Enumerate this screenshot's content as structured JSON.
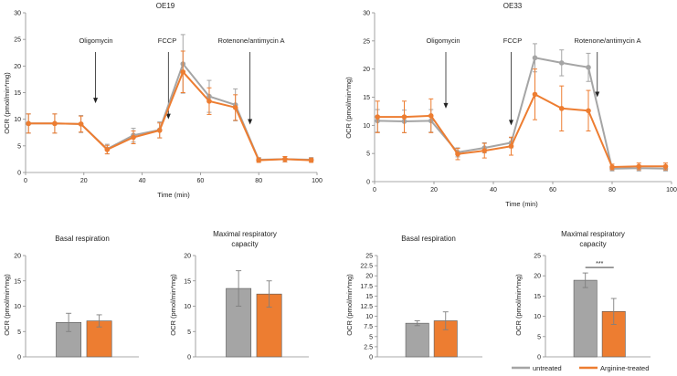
{
  "colors": {
    "untreated": "#a5a5a5",
    "arginine": "#ed7d31",
    "axis": "#8c8c8c",
    "error": "#7f7f7f"
  },
  "legend": {
    "untreated": "untreated",
    "arginine": "Arginine-treated"
  },
  "chart_data": [
    {
      "id": "oe19-ocr",
      "type": "line",
      "title": "OE19",
      "xlabel": "Time (min)",
      "ylabel": "OCR (pmol/min*mg)",
      "xlim": [
        0,
        100
      ],
      "ylim": [
        0,
        30
      ],
      "xticks": [
        0,
        20,
        40,
        60,
        80,
        100
      ],
      "yticks": [
        0,
        5,
        10,
        15,
        20,
        25,
        30
      ],
      "x": [
        1,
        10,
        19,
        28,
        37,
        46,
        54,
        63,
        72,
        80,
        89,
        98
      ],
      "series": [
        {
          "name": "untreated",
          "values": [
            9.2,
            9.2,
            9.1,
            4.4,
            7.0,
            8.0,
            20.4,
            14.3,
            12.7,
            2.4,
            2.5,
            2.4
          ],
          "error": [
            1.8,
            1.8,
            1.6,
            0.9,
            1.3,
            1.5,
            5.5,
            3.0,
            3.0,
            0.4,
            0.5,
            0.4
          ]
        },
        {
          "name": "Arginine-treated",
          "values": [
            9.2,
            9.2,
            9.1,
            4.3,
            6.6,
            7.9,
            18.9,
            13.4,
            12.2,
            2.3,
            2.5,
            2.3
          ],
          "error": [
            1.8,
            1.8,
            1.5,
            0.8,
            1.2,
            1.4,
            3.9,
            2.5,
            2.4,
            0.4,
            0.5,
            0.4
          ]
        }
      ],
      "annotations": [
        {
          "text": "Oligomycin",
          "x": 24,
          "arrow_tip": 13,
          "label_y": 26
        },
        {
          "text": "FCCP",
          "x": 49,
          "arrow_tip": 10,
          "label_y": 26
        },
        {
          "text": "Rotenone/antimycin A",
          "x": 77,
          "arrow_tip": 9,
          "label_y": 26
        }
      ]
    },
    {
      "id": "oe33-ocr",
      "type": "line",
      "title": "OE33",
      "xlabel": "Time (min)",
      "ylabel": "OCR (pmol/min*mg)",
      "xlim": [
        0,
        100
      ],
      "ylim": [
        0,
        30
      ],
      "xticks": [
        0,
        20,
        40,
        60,
        80,
        100
      ],
      "yticks": [
        0,
        5,
        10,
        15,
        20,
        25,
        30
      ],
      "x": [
        1,
        10,
        19,
        28,
        37,
        46,
        54,
        63,
        72,
        80,
        89,
        98
      ],
      "series": [
        {
          "name": "untreated",
          "values": [
            10.8,
            10.7,
            10.8,
            5.2,
            6.0,
            6.9,
            22.0,
            21.1,
            20.3,
            2.3,
            2.4,
            2.3
          ],
          "error": [
            2.0,
            2.0,
            2.0,
            0.8,
            0.9,
            0.9,
            2.5,
            2.3,
            2.5,
            0.4,
            0.5,
            0.4
          ]
        },
        {
          "name": "Arginine-treated",
          "values": [
            11.5,
            11.5,
            11.7,
            4.9,
            5.5,
            6.3,
            15.5,
            13.0,
            12.6,
            2.6,
            2.7,
            2.7
          ],
          "error": [
            2.8,
            2.8,
            3.0,
            1.0,
            1.3,
            1.6,
            4.5,
            4.0,
            3.6,
            0.5,
            0.6,
            0.6
          ]
        }
      ],
      "annotations": [
        {
          "text": "Oligomycin",
          "x": 24,
          "arrow_tip": 13,
          "label_y": 26
        },
        {
          "text": "FCCP",
          "x": 46,
          "arrow_tip": 10,
          "label_y": 26
        },
        {
          "text": "Rotenone/antimycin A",
          "x": 75,
          "arrow_tip": 15,
          "label_y": 26
        }
      ]
    },
    {
      "id": "oe19-basal",
      "type": "bar",
      "title": "Basal respiration",
      "ylabel": "OCR (pmol/min*mg)",
      "ylim": [
        0,
        20
      ],
      "yticks": [
        0,
        5,
        10,
        15,
        20
      ],
      "categories": [
        "untreated",
        "Arginine-treated"
      ],
      "values": [
        6.8,
        7.1
      ],
      "error": [
        1.8,
        1.2
      ]
    },
    {
      "id": "oe19-maximal",
      "type": "bar",
      "title": "Maximal respiratory capacity",
      "title_lines": [
        "Maximal respiratory",
        "capacity"
      ],
      "ylabel": "OCR (pmol/min*mg)",
      "ylim": [
        0,
        20
      ],
      "yticks": [
        0,
        5,
        10,
        15,
        20
      ],
      "categories": [
        "untreated",
        "Arginine-treated"
      ],
      "values": [
        13.5,
        12.4
      ],
      "error": [
        3.5,
        2.6
      ]
    },
    {
      "id": "oe33-basal",
      "type": "bar",
      "title": "Basal respiration",
      "ylabel": "OCR (pmol/min*mg)",
      "ylim": [
        0,
        25
      ],
      "yticks": [
        0,
        2.5,
        5,
        7.5,
        10,
        12.5,
        15,
        17.5,
        20,
        22.5,
        25
      ],
      "categories": [
        "untreated",
        "Arginine-treated"
      ],
      "values": [
        8.3,
        8.9
      ],
      "error": [
        0.6,
        2.2
      ]
    },
    {
      "id": "oe33-maximal",
      "type": "bar",
      "title": "Maximal respiratory capacity",
      "title_lines": [
        "Maximal respiratory",
        "capacity"
      ],
      "ylabel": "OCR (pmol/min*mg)",
      "ylim": [
        0,
        25
      ],
      "yticks": [
        0,
        5,
        10,
        15,
        20,
        25
      ],
      "categories": [
        "untreated",
        "Arginine-treated"
      ],
      "values": [
        18.9,
        11.2
      ],
      "error": [
        1.8,
        3.2
      ],
      "significance": "***"
    }
  ]
}
